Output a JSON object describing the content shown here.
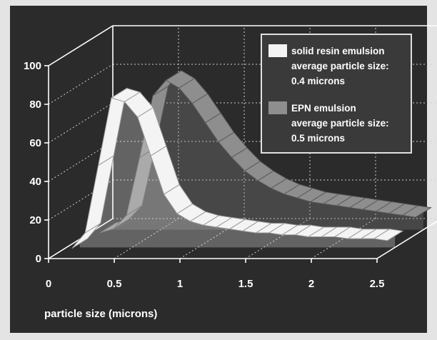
{
  "chart_data": {
    "type": "area",
    "title": "",
    "xlabel": "particle size (microns)",
    "ylabel": "",
    "ylim": [
      0,
      100
    ],
    "xlim": [
      0,
      2.5
    ],
    "x_ticks": [
      "0",
      "0.5",
      "1",
      "1.5",
      "2",
      "2.5"
    ],
    "y_ticks": [
      "0",
      "20",
      "40",
      "60",
      "80",
      "100"
    ],
    "grid": true,
    "legend_position": "top-right",
    "x": [
      0.1,
      0.2,
      0.3,
      0.4,
      0.5,
      0.6,
      0.7,
      0.8,
      0.9,
      1.0,
      1.1,
      1.2,
      1.3,
      1.4,
      1.5,
      1.6,
      1.7,
      1.8,
      1.9,
      2.0,
      2.1,
      2.2,
      2.3,
      2.4,
      2.5
    ],
    "series": [
      {
        "name": "solid resin emulsion average particle size: 0.4 microns",
        "legend_lines": [
          "solid resin emulsion",
          "average particle size:",
          "0.4 microns"
        ],
        "color": "#f4f4f4",
        "values": [
          2,
          10,
          45,
          80,
          78,
          70,
          50,
          30,
          20,
          16,
          14,
          13,
          12,
          11,
          10,
          10,
          9,
          9,
          8,
          8,
          8,
          7,
          7,
          7,
          6
        ]
      },
      {
        "name": "EPN emulsion average particle size: 0.5 microns",
        "legend_lines": [
          "EPN emulsion",
          "average particle size:",
          "0.5 microns"
        ],
        "color": "#8e8e8e",
        "values": [
          1,
          3,
          10,
          40,
          72,
          80,
          76,
          68,
          58,
          48,
          40,
          33,
          28,
          24,
          21,
          19,
          17,
          16,
          15,
          14,
          13,
          12,
          11,
          10,
          9
        ]
      }
    ]
  }
}
